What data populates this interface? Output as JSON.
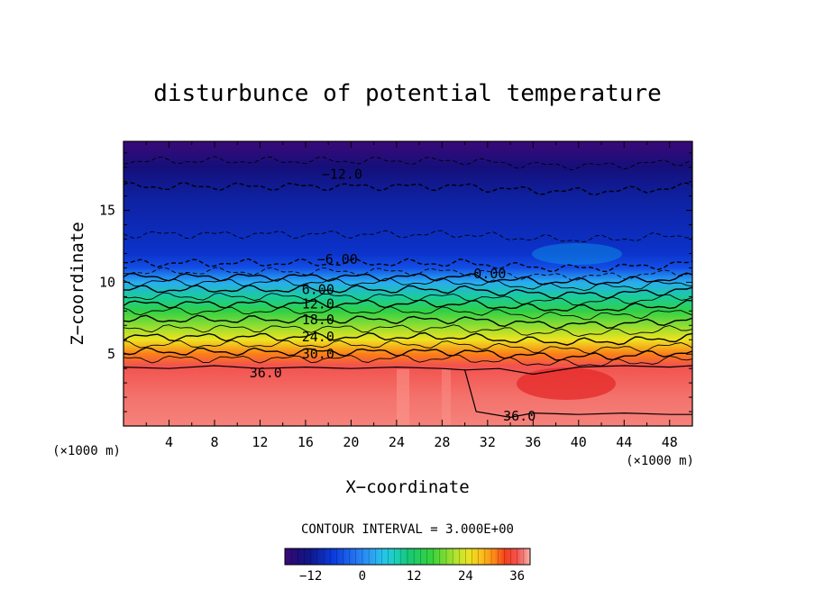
{
  "chart_data": {
    "type": "contour",
    "title": "disturbunce of potential temperature",
    "xlabel": "X−coordinate",
    "ylabel": "Z−coordinate",
    "x_unit_left": "(×1000 m)",
    "x_unit_right": "(×1000 m)",
    "x_ticks": [
      "4",
      "8",
      "12",
      "16",
      "20",
      "24",
      "28",
      "32",
      "36",
      "40",
      "44",
      "48"
    ],
    "y_ticks": [
      "5",
      "10",
      "15"
    ],
    "xlim": [
      0,
      50
    ],
    "ylim": [
      0,
      19.8
    ],
    "contour_interval_text": "CONTOUR INTERVAL = 3.000E+00",
    "colorbar": {
      "ticks": [
        "−12",
        "0",
        "12",
        "24",
        "36"
      ],
      "range": [
        -18,
        39
      ]
    },
    "contour_labels": [
      {
        "text": "−12.0",
        "x": 19.2,
        "z": 17.5
      },
      {
        "text": "−6.00",
        "x": 18.8,
        "z": 11.6
      },
      {
        "text": "0.00",
        "x": 32.2,
        "z": 10.6
      },
      {
        "text": "6.00",
        "x": 17.1,
        "z": 9.5
      },
      {
        "text": "12.0",
        "x": 17.1,
        "z": 8.5
      },
      {
        "text": "18.0",
        "x": 17.1,
        "z": 7.4
      },
      {
        "text": "24.0",
        "x": 17.1,
        "z": 6.2
      },
      {
        "text": "30.0",
        "x": 17.1,
        "z": 5.0
      },
      {
        "text": "36.0",
        "x": 12.5,
        "z": 3.7
      },
      {
        "text": "36.0",
        "x": 34.8,
        "z": 0.7
      }
    ],
    "profile": {
      "z": [
        0,
        2,
        4.2,
        5,
        6,
        7,
        8,
        9,
        10,
        11,
        12,
        14,
        16,
        18,
        19.8
      ],
      "value": [
        37.5,
        37,
        36,
        31,
        25,
        20,
        15,
        9,
        3,
        -5,
        -8,
        -9.5,
        -11,
        -14,
        -18
      ]
    }
  }
}
